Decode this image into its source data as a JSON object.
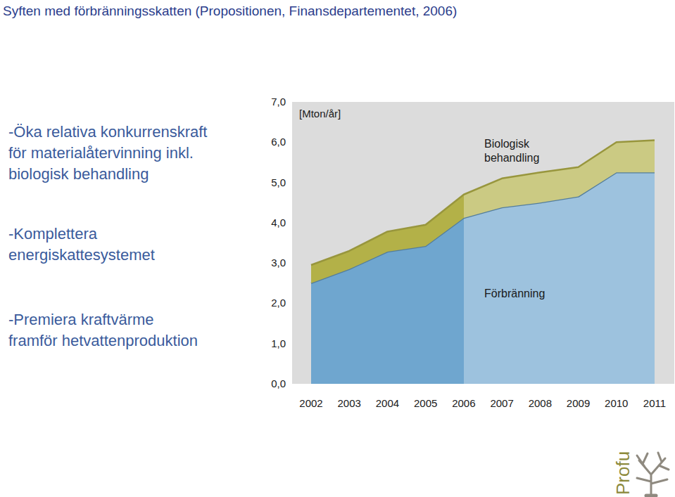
{
  "chart_data": {
    "type": "area",
    "stacked": true,
    "title": "Syften med förbränningsskatten (Propositionen, Finansdepartementet, 2006)",
    "y_label": "[Mton/år]",
    "annotations": [
      [
        "-Öka relativa konkurrenskraft",
        "för materialåtervinning inkl.",
        "biologisk behandling"
      ],
      [
        "-Komplettera",
        "energiskattesystemet"
      ],
      [
        "-Premiera kraftvärme",
        "framför hetvattenproduktion"
      ]
    ],
    "logo": "Profu",
    "categories": [
      "2002",
      "2003",
      "2004",
      "2005",
      "2006",
      "2007",
      "2008",
      "2009",
      "2010",
      "2011"
    ],
    "series": [
      {
        "name": "Förbränning",
        "color": "#6fa6cf",
        "values": [
          2.5,
          2.85,
          3.28,
          3.42,
          4.12,
          4.38,
          4.5,
          4.65,
          5.25,
          5.25
        ]
      },
      {
        "name": "Biologisk behandling",
        "color": "#b3b148",
        "values": [
          0.45,
          0.45,
          0.5,
          0.53,
          0.58,
          0.72,
          0.75,
          0.73,
          0.75,
          0.8
        ]
      }
    ],
    "ylim": [
      0,
      7
    ],
    "yticks": [
      {
        "value": 0,
        "label": "0,0"
      },
      {
        "value": 1,
        "label": "1,0"
      },
      {
        "value": 2,
        "label": "2,0"
      },
      {
        "value": 3,
        "label": "3,0"
      },
      {
        "value": 4,
        "label": "4,0"
      },
      {
        "value": 5,
        "label": "5,0"
      },
      {
        "value": 6,
        "label": "6,0"
      },
      {
        "value": 7,
        "label": "7,0"
      }
    ],
    "grid": false
  }
}
